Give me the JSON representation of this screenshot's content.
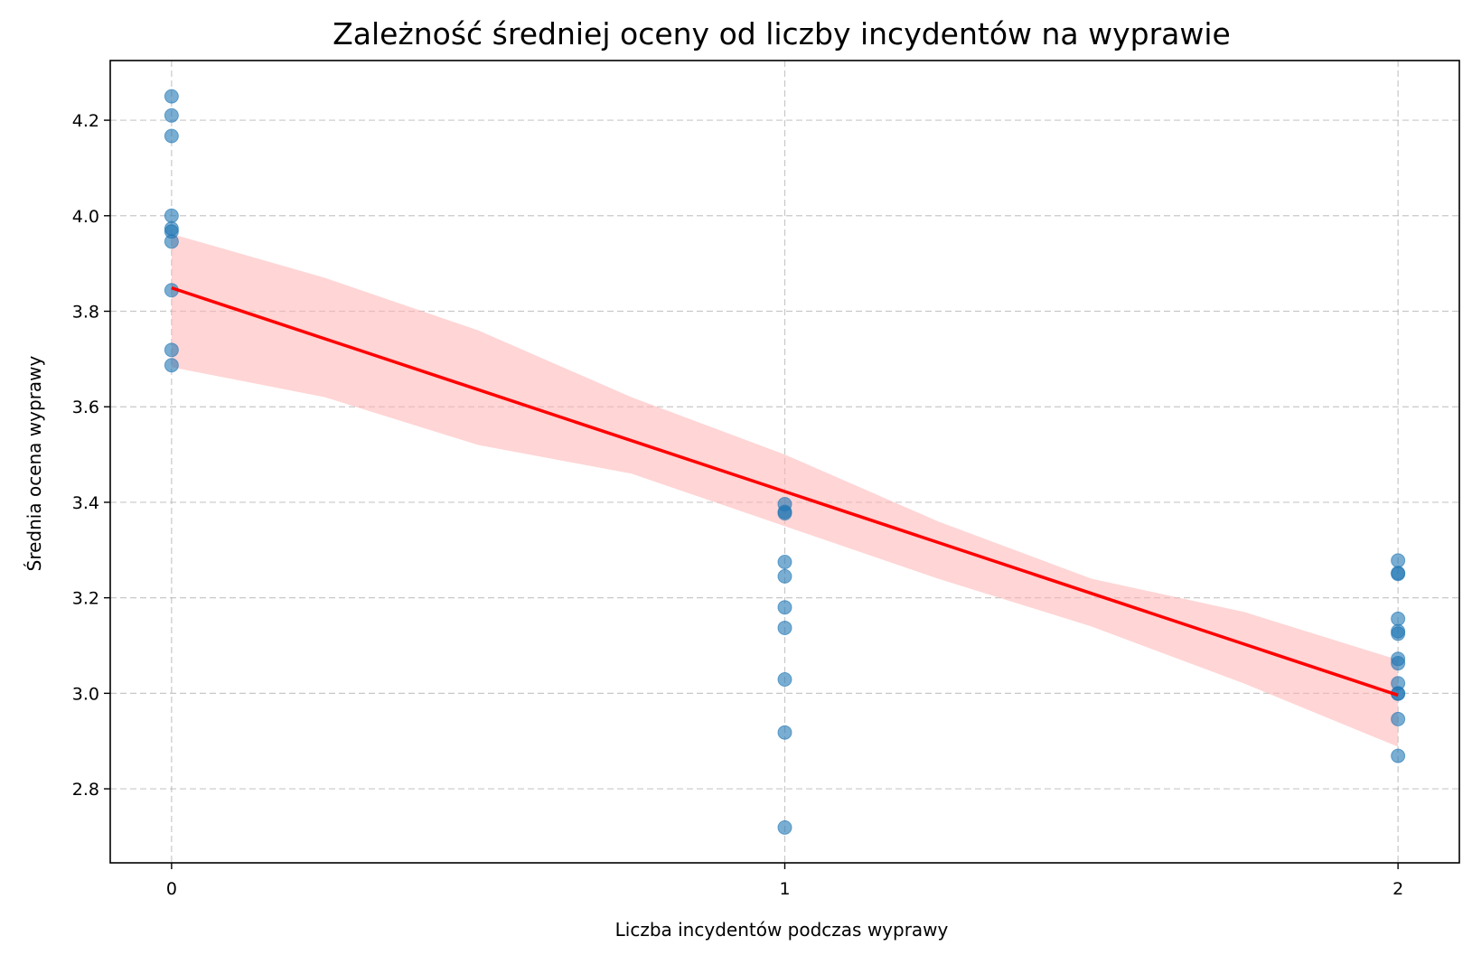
{
  "chart_data": {
    "type": "scatter",
    "title": "Zależność średniej oceny od liczby incydentów na wyprawie",
    "xlabel": "Liczba incydentów podczas wyprawy",
    "ylabel": "Średnia ocena wyprawy",
    "xlim": [
      -0.1,
      2.1
    ],
    "ylim": [
      2.645,
      4.325
    ],
    "xticks": [
      0,
      1,
      2
    ],
    "xtick_labels": [
      "0",
      "1",
      "2"
    ],
    "yticks": [
      2.8,
      3.0,
      3.2,
      3.4,
      3.6,
      3.8,
      4.0,
      4.2
    ],
    "ytick_labels": [
      "2.8",
      "3.0",
      "3.2",
      "3.4",
      "3.6",
      "3.8",
      "4.0",
      "4.2"
    ],
    "grid": true,
    "colors": {
      "points": "#1f77b4",
      "regression_line": "#ff0000",
      "confidence_band": "#ffb3b3"
    },
    "points": [
      {
        "x": 0,
        "y": 4.25
      },
      {
        "x": 0,
        "y": 4.21
      },
      {
        "x": 0,
        "y": 4.167
      },
      {
        "x": 0,
        "y": 4.0
      },
      {
        "x": 0,
        "y": 3.973
      },
      {
        "x": 0,
        "y": 3.967
      },
      {
        "x": 0,
        "y": 3.946
      },
      {
        "x": 0,
        "y": 3.844
      },
      {
        "x": 0,
        "y": 3.719
      },
      {
        "x": 0,
        "y": 3.687
      },
      {
        "x": 1,
        "y": 3.396
      },
      {
        "x": 1,
        "y": 3.38
      },
      {
        "x": 1,
        "y": 3.377
      },
      {
        "x": 1,
        "y": 3.275
      },
      {
        "x": 1,
        "y": 3.245
      },
      {
        "x": 1,
        "y": 3.18
      },
      {
        "x": 1,
        "y": 3.137
      },
      {
        "x": 1,
        "y": 3.029
      },
      {
        "x": 1,
        "y": 2.918
      },
      {
        "x": 1,
        "y": 2.719
      },
      {
        "x": 2,
        "y": 3.278
      },
      {
        "x": 2,
        "y": 3.252
      },
      {
        "x": 2,
        "y": 3.25
      },
      {
        "x": 2,
        "y": 3.156
      },
      {
        "x": 2,
        "y": 3.13
      },
      {
        "x": 2,
        "y": 3.125
      },
      {
        "x": 2,
        "y": 3.072
      },
      {
        "x": 2,
        "y": 3.063
      },
      {
        "x": 2,
        "y": 3.021
      },
      {
        "x": 2,
        "y": 3.0
      },
      {
        "x": 2,
        "y": 2.999
      },
      {
        "x": 2,
        "y": 2.946
      },
      {
        "x": 2,
        "y": 2.869
      }
    ],
    "regression": {
      "x": [
        0,
        2
      ],
      "y": [
        3.849,
        2.996
      ]
    },
    "confidence_band": {
      "x": [
        0,
        0.25,
        0.5,
        0.75,
        1.0,
        1.25,
        1.5,
        1.75,
        2.0
      ],
      "upper": [
        3.962,
        3.87,
        3.76,
        3.62,
        3.5,
        3.36,
        3.24,
        3.17,
        3.07
      ],
      "lower": [
        3.683,
        3.62,
        3.52,
        3.46,
        3.35,
        3.24,
        3.14,
        3.02,
        2.888
      ]
    }
  }
}
